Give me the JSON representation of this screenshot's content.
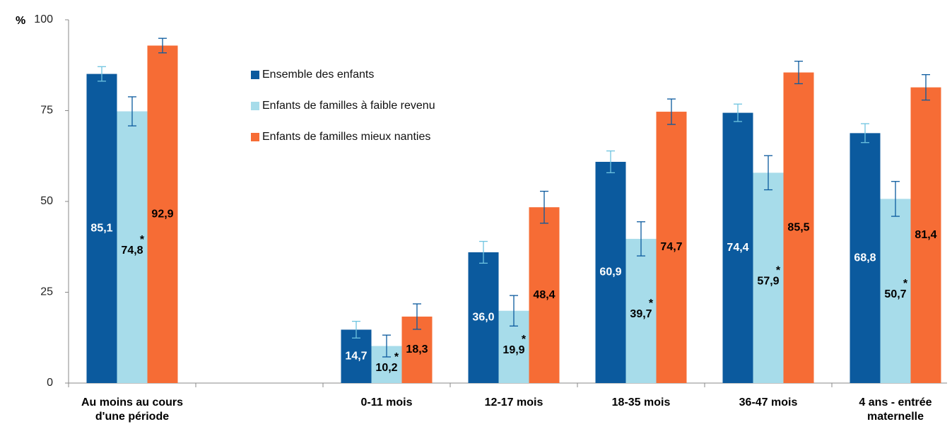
{
  "chart_data": {
    "type": "bar",
    "y_unit": "%",
    "categories": [
      "Au moins au cours d'une période",
      null,
      "0-11 mois",
      "12-17 mois",
      "18-35 mois",
      "36-47 mois",
      "4 ans - entrée maternelle"
    ],
    "series": [
      {
        "name": "Ensemble des enfants",
        "color": "#0b5a9e",
        "label_color": "#ffffff",
        "error_color": "#6ec4e0",
        "values": [
          85.1,
          null,
          14.7,
          36.0,
          60.9,
          74.4,
          68.8
        ],
        "value_labels": [
          "85,1",
          null,
          "14,7",
          "36,0",
          "60,9",
          "74,4",
          "68,8"
        ],
        "errors": [
          2,
          null,
          2.3,
          3,
          3,
          2.4,
          2.6
        ]
      },
      {
        "name": "Enfants de familles à faible revenu",
        "color": "#a7dcea",
        "label_color": "#000000",
        "error_color": "#0b5a9e",
        "values": [
          74.8,
          null,
          10.2,
          19.9,
          39.7,
          57.9,
          50.7
        ],
        "value_labels": [
          "74,8",
          null,
          "10,2",
          "19,9",
          "39,7",
          "57,9",
          "50,7"
        ],
        "markers": [
          "*",
          null,
          "*",
          "*",
          "*",
          "*",
          "*"
        ],
        "errors": [
          4,
          null,
          3,
          4.2,
          4.7,
          4.7,
          4.8
        ]
      },
      {
        "name": "Enfants de familles mieux nanties",
        "color": "#f66c35",
        "label_color": "#000000",
        "error_color": "#0b5a9e",
        "values": [
          92.9,
          null,
          18.3,
          48.4,
          74.7,
          85.5,
          81.4
        ],
        "value_labels": [
          "92,9",
          null,
          "18,3",
          "48,4",
          "74,7",
          "85,5",
          "81,4"
        ],
        "errors": [
          2,
          null,
          3.5,
          4.4,
          3.5,
          3.1,
          3.5
        ]
      }
    ],
    "ylim": [
      0,
      100
    ],
    "yticks": [
      0,
      25,
      50,
      75,
      100
    ],
    "grid": false
  }
}
